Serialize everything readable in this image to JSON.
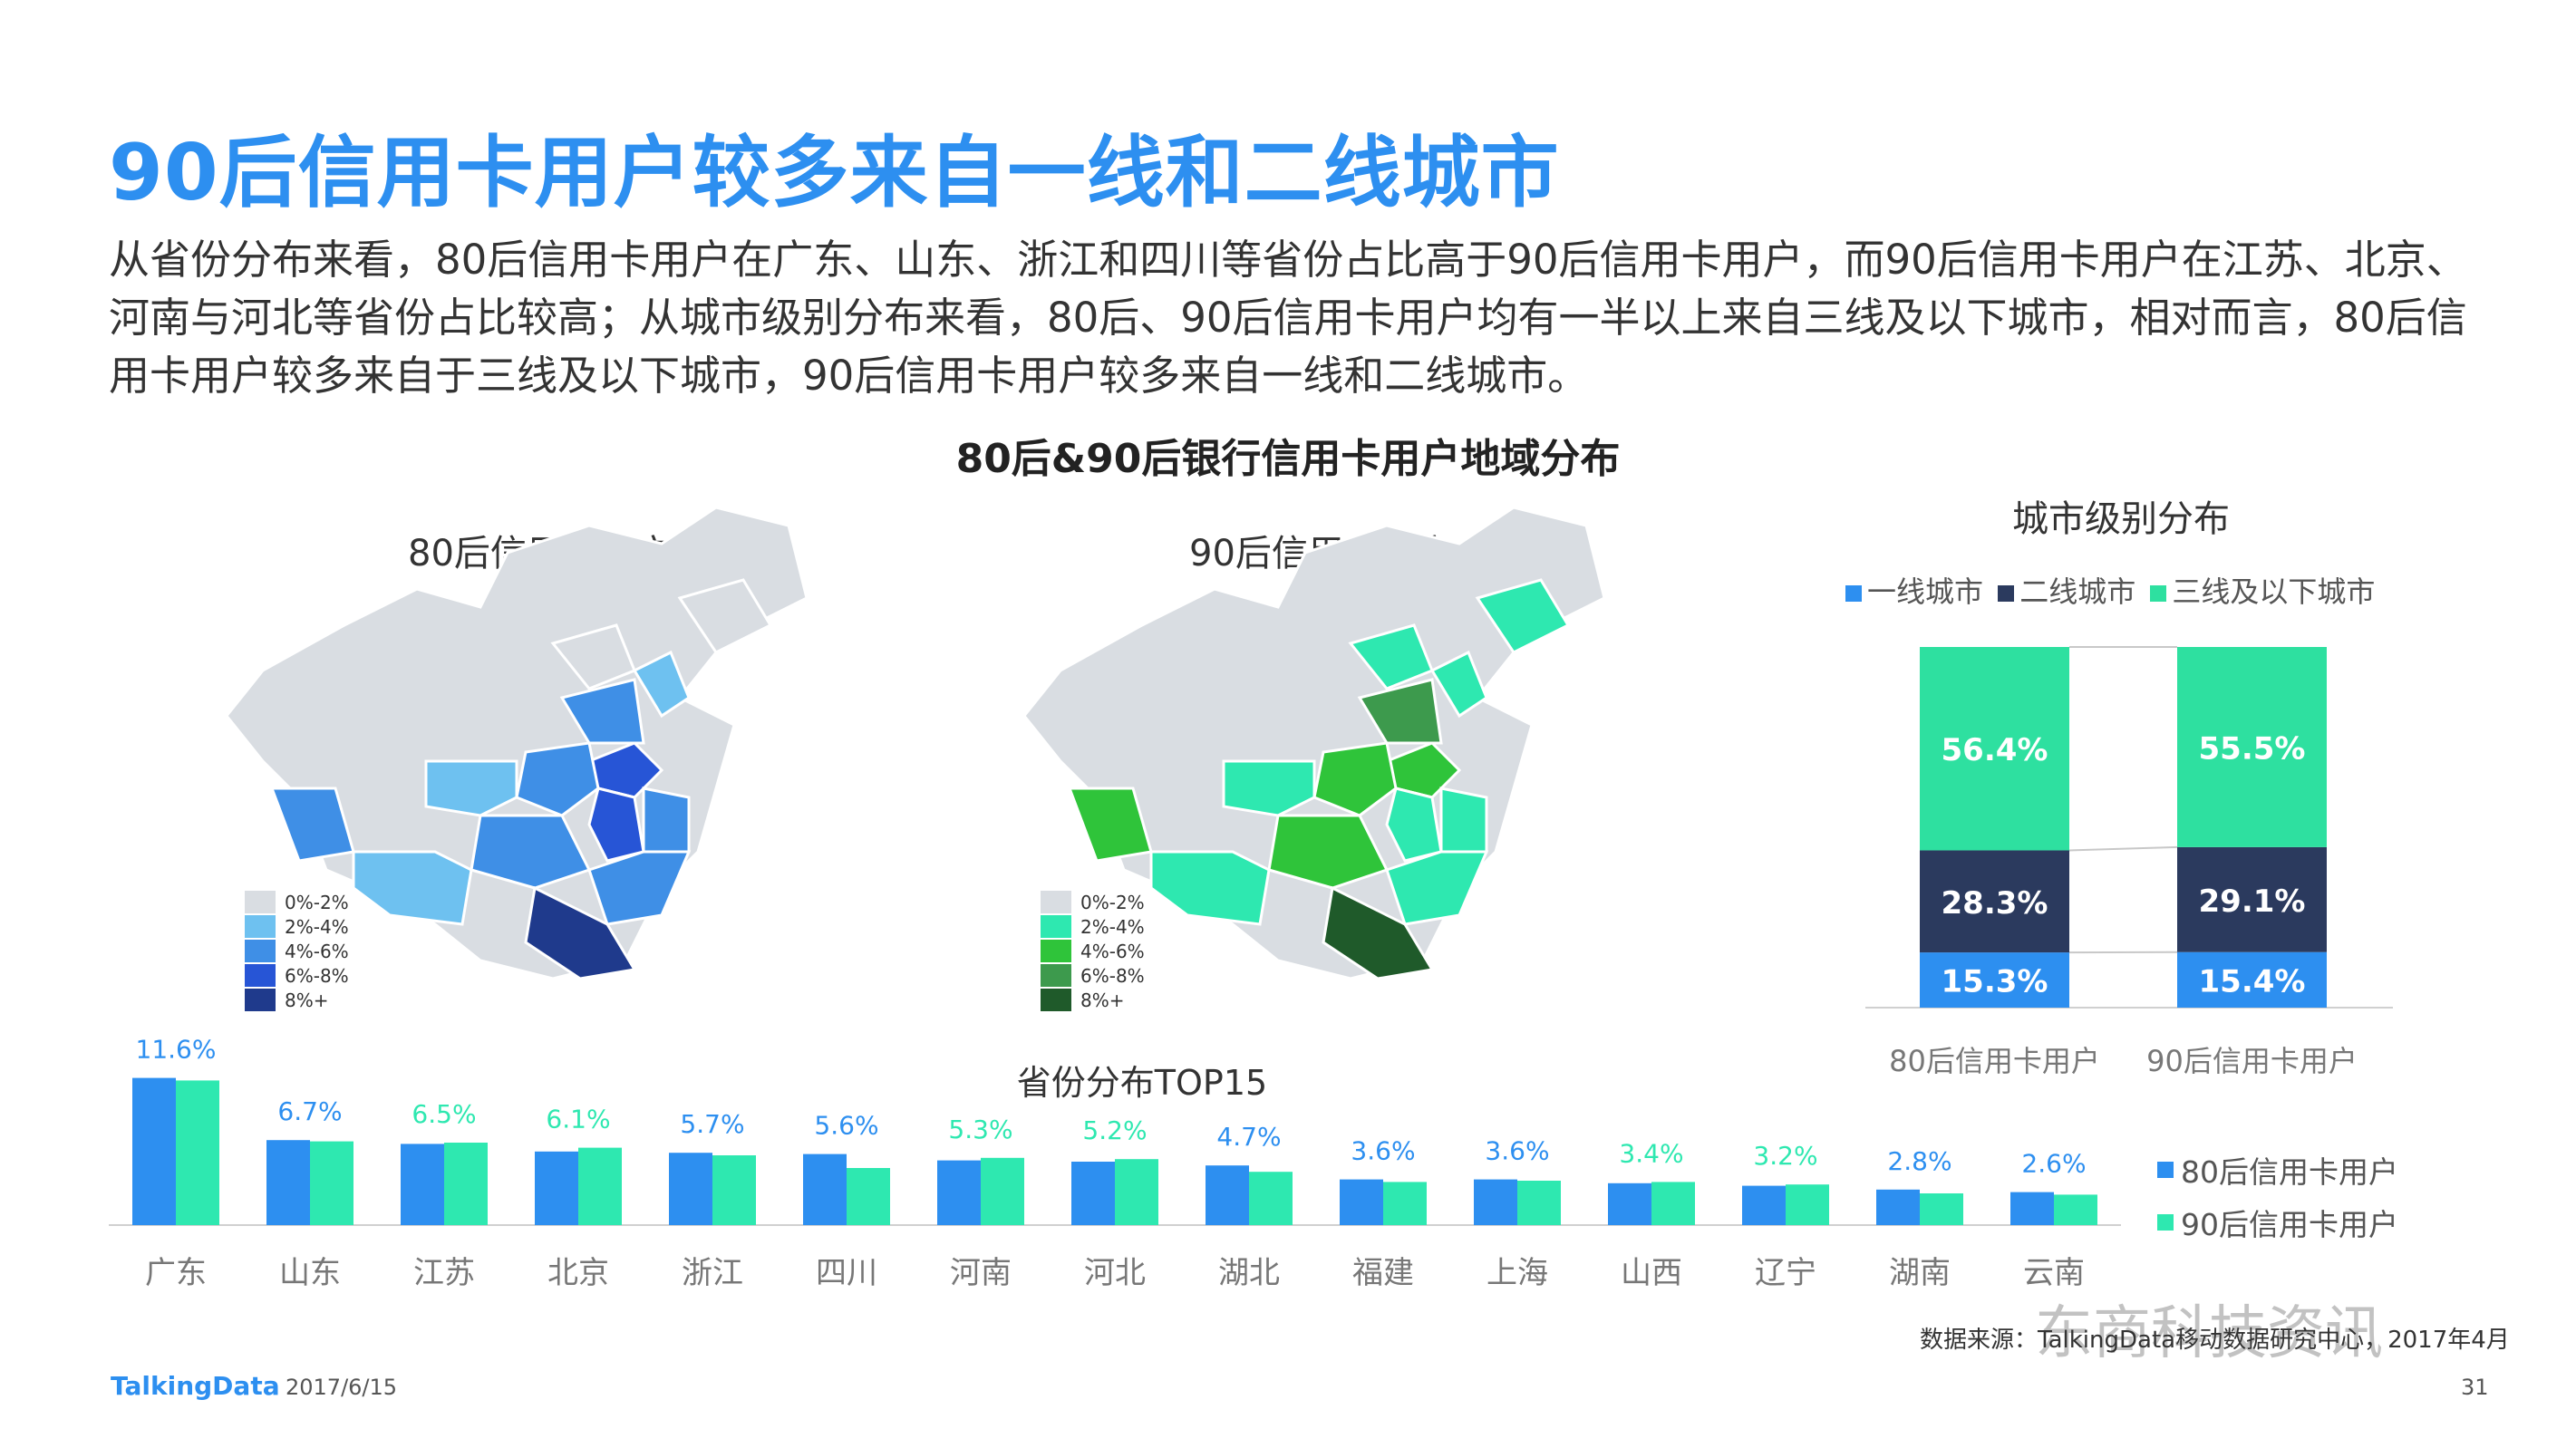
{
  "title": "90后信用卡用户较多来自一线和二线城市",
  "intro": "从省份分布来看，80后信用卡用户在广东、山东、浙江和四川等省份占比高于90后信用卡用户，而90后信用卡用户在江苏、北京、河南与河北等省份占比较高；从城市级别分布来看，80后、90后信用卡用户均有一半以上来自三线及以下城市，相对而言，80后信用卡用户较多来自于三线及以下城市，90后信用卡用户较多来自一线和二线城市。",
  "charts_title": "80后&90后银行信用卡用户地域分布",
  "maps": {
    "left_label": "80后信用卡用户",
    "right_label": "90后信用卡用户",
    "legend_labels": [
      "0%-2%",
      "2%-4%",
      "4%-6%",
      "6%-8%",
      "8%+"
    ],
    "left_colors": [
      "#d9dde2",
      "#6ec1f0",
      "#3f8fe6",
      "#2755d6",
      "#1f3a8c"
    ],
    "right_colors": [
      "#d9dde2",
      "#2ee8b0",
      "#2fc43a",
      "#3d9a4d",
      "#1f5a2a"
    ]
  },
  "footer": {
    "logo": "TalkingData",
    "date": "2017/6/15",
    "page": "31",
    "source": "数据来源：TalkingData移动数据研究中心，2017年4月",
    "watermark": "东商科技资讯"
  },
  "colors": {
    "title_blue": "#2d8ff0",
    "series_80": "#2d8ff0",
    "series_90": "#2ee8b0",
    "tier_1": "#2d8ff0",
    "tier_2": "#2b3a5e",
    "tier_3": "#2ee0a0"
  },
  "chart_data": [
    {
      "type": "bar",
      "stacked": true,
      "title": "城市级别分布",
      "categories": [
        "80后信用卡用户",
        "90后信用卡用户"
      ],
      "series": [
        {
          "name": "一线城市",
          "values": [
            15.3,
            15.4
          ],
          "labels": [
            "15.3%",
            "15.4%"
          ],
          "color": "#2d8ff0"
        },
        {
          "name": "二线城市",
          "values": [
            28.3,
            29.1
          ],
          "labels": [
            "28.3%",
            "29.1%"
          ],
          "color": "#2b3a5e"
        },
        {
          "name": "三线及以下城市",
          "values": [
            56.4,
            55.5
          ],
          "labels": [
            "56.4%",
            "55.5%"
          ],
          "color": "#2ee0a0"
        }
      ],
      "ylim": [
        0,
        100
      ],
      "legend": "top"
    },
    {
      "type": "bar",
      "title": "省份分布TOP15",
      "categories": [
        "广东",
        "山东",
        "江苏",
        "北京",
        "浙江",
        "四川",
        "河南",
        "河北",
        "湖北",
        "福建",
        "上海",
        "山西",
        "辽宁",
        "湖南",
        "云南"
      ],
      "series": [
        {
          "name": "80后信用卡用户",
          "values": [
            11.6,
            6.7,
            6.4,
            5.8,
            5.7,
            5.6,
            5.1,
            5.0,
            4.7,
            3.6,
            3.6,
            3.3,
            3.1,
            2.8,
            2.6
          ],
          "color": "#2d8ff0"
        },
        {
          "name": "90后信用卡用户",
          "values": [
            11.4,
            6.6,
            6.5,
            6.1,
            5.5,
            4.5,
            5.3,
            5.2,
            4.2,
            3.4,
            3.5,
            3.4,
            3.2,
            2.5,
            2.4
          ],
          "color": "#2ee8b0"
        }
      ],
      "data_labels": [
        {
          "category": "广东",
          "series": "80后信用卡用户",
          "text": "11.6%"
        },
        {
          "category": "山东",
          "series": "80后信用卡用户",
          "text": "6.7%"
        },
        {
          "category": "江苏",
          "series": "90后信用卡用户",
          "text": "6.5%"
        },
        {
          "category": "北京",
          "series": "90后信用卡用户",
          "text": "6.1%"
        },
        {
          "category": "浙江",
          "series": "80后信用卡用户",
          "text": "5.7%"
        },
        {
          "category": "四川",
          "series": "80后信用卡用户",
          "text": "5.6%"
        },
        {
          "category": "河南",
          "series": "90后信用卡用户",
          "text": "5.3%"
        },
        {
          "category": "河北",
          "series": "90后信用卡用户",
          "text": "5.2%"
        },
        {
          "category": "湖北",
          "series": "80后信用卡用户",
          "text": "4.7%"
        },
        {
          "category": "福建",
          "series": "80后信用卡用户",
          "text": "3.6%"
        },
        {
          "category": "上海",
          "series": "80后信用卡用户",
          "text": "3.6%"
        },
        {
          "category": "山西",
          "series": "90后信用卡用户",
          "text": "3.4%"
        },
        {
          "category": "辽宁",
          "series": "90后信用卡用户",
          "text": "3.2%"
        },
        {
          "category": "湖南",
          "series": "80后信用卡用户",
          "text": "2.8%"
        },
        {
          "category": "云南",
          "series": "80后信用卡用户",
          "text": "2.6%"
        }
      ],
      "ylim": [
        0,
        12
      ],
      "legend": "right"
    }
  ]
}
